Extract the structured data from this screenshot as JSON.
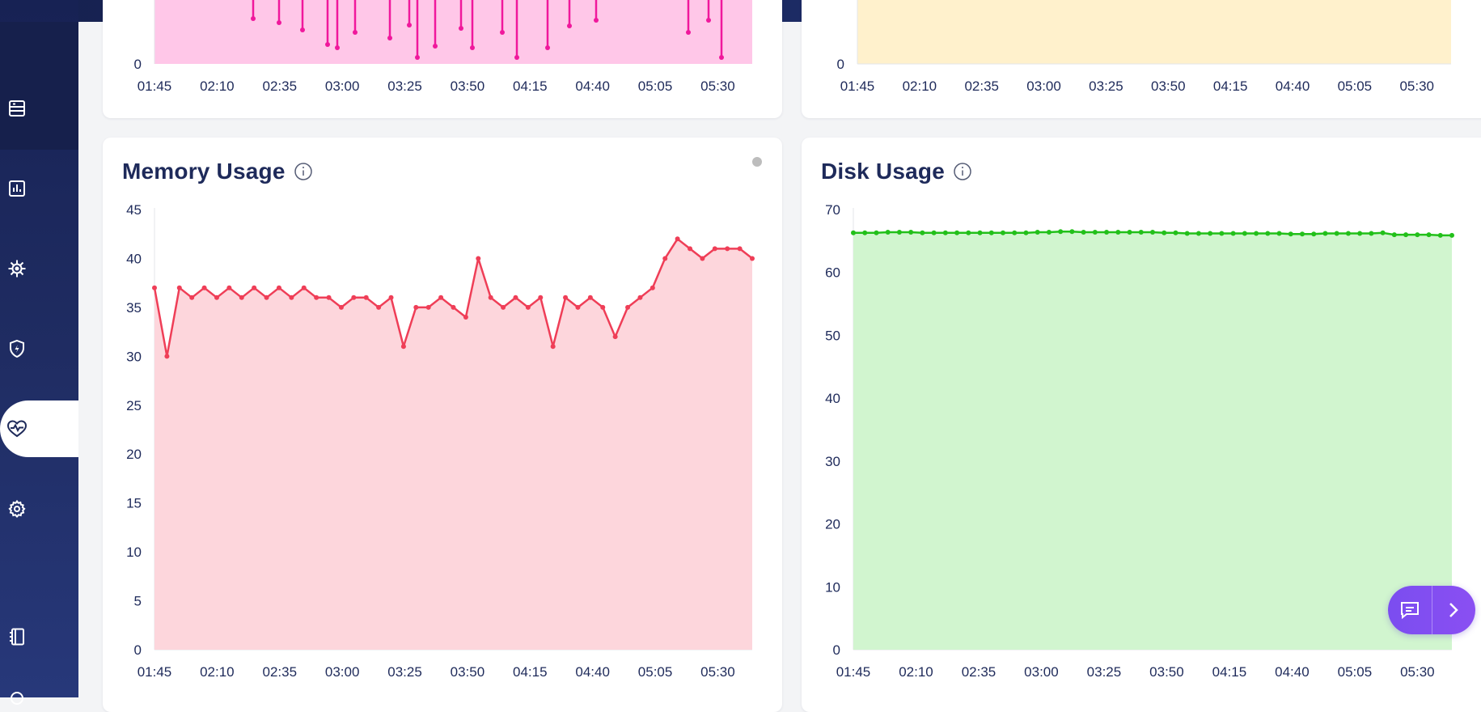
{
  "nav": {
    "items": [
      {
        "icon": "server-icon",
        "name": "nav-item-servers",
        "active": false
      },
      {
        "icon": "bar-chart-icon",
        "name": "nav-item-reports",
        "active": false
      },
      {
        "icon": "virus-icon",
        "name": "nav-item-threats",
        "active": false
      },
      {
        "icon": "shield-bolt-icon",
        "name": "nav-item-protection",
        "active": false
      },
      {
        "icon": "heart-pulse-icon",
        "name": "nav-item-health",
        "active": true
      },
      {
        "icon": "gear-icon",
        "name": "nav-item-settings",
        "active": false
      },
      {
        "icon": "notebook-icon",
        "name": "nav-item-logs",
        "active": false
      }
    ]
  },
  "x_ticks": [
    "01:45",
    "02:10",
    "02:35",
    "03:00",
    "03:25",
    "03:50",
    "04:15",
    "04:40",
    "05:05",
    "05:30"
  ],
  "cards": {
    "memory": {
      "title": "Memory Usage"
    },
    "disk": {
      "title": "Disk Usage"
    }
  },
  "colors": {
    "memory_line": "#ef3e57",
    "memory_fill": "#fdd6dc",
    "disk_line": "#22c01a",
    "disk_fill": "#d1f5cf",
    "top_left_line": "#f0189c",
    "top_left_fill": "#ffc7e8",
    "top_right_fill": "#fff1cc"
  },
  "chart_data": [
    {
      "type": "line",
      "title": "",
      "ylim": [
        0,
        null
      ],
      "y_tick_visible": [
        0
      ],
      "x_ticks": [
        "01:45",
        "02:10",
        "02:35",
        "03:00",
        "03:25",
        "03:50",
        "04:15",
        "04:40",
        "05:05",
        "05:30"
      ],
      "note_visible": "cropped at top; only lower portion visible",
      "series": [
        {
          "values": [
            null,
            null,
            null,
            null,
            null,
            null,
            null,
            null,
            null,
            null,
            null,
            null,
            null,
            null,
            null,
            null,
            null,
            null,
            null,
            null,
            null,
            null,
            null,
            null,
            null,
            null,
            null,
            null,
            null,
            null,
            null,
            null,
            null,
            null,
            null,
            null,
            null,
            null,
            null,
            null,
            null,
            null,
            null,
            null,
            null,
            null,
            null,
            null,
            null
          ]
        }
      ]
    },
    {
      "type": "area",
      "title": "",
      "y_tick_visible": [
        0
      ],
      "x_ticks": [
        "01:45",
        "02:10",
        "02:35",
        "03:00",
        "03:25",
        "03:50",
        "04:15",
        "04:40",
        "05:05",
        "05:30"
      ]
    },
    {
      "type": "line",
      "title": "Memory Usage",
      "ylim": [
        0,
        45
      ],
      "y_ticks": [
        0,
        5,
        10,
        15,
        20,
        25,
        30,
        35,
        40,
        45
      ],
      "x_ticks": [
        "01:45",
        "02:10",
        "02:35",
        "03:00",
        "03:25",
        "03:50",
        "04:15",
        "04:40",
        "05:05",
        "05:30"
      ],
      "series": [
        {
          "values": [
            37,
            30,
            37,
            36,
            37,
            36,
            37,
            36,
            37,
            36,
            37,
            36,
            37,
            36,
            36,
            35,
            36,
            36,
            35,
            36,
            31,
            35,
            35,
            36,
            35,
            34,
            40,
            36,
            35,
            36,
            35,
            36,
            31,
            36,
            35,
            36,
            35,
            32,
            35,
            36,
            37,
            40,
            42,
            41,
            40,
            41,
            41,
            41,
            40
          ]
        }
      ]
    },
    {
      "type": "line",
      "title": "Disk Usage",
      "ylim": [
        0,
        70
      ],
      "y_ticks": [
        0,
        10,
        20,
        30,
        40,
        50,
        60,
        70
      ],
      "x_ticks": [
        "01:45",
        "02:10",
        "02:35",
        "03:00",
        "03:25",
        "03:50",
        "04:15",
        "04:40",
        "05:05",
        "05:30"
      ],
      "series": [
        {
          "values": [
            66.3,
            66.3,
            66.3,
            66.4,
            66.4,
            66.4,
            66.3,
            66.3,
            66.3,
            66.3,
            66.3,
            66.3,
            66.3,
            66.3,
            66.3,
            66.3,
            66.4,
            66.4,
            66.5,
            66.5,
            66.4,
            66.4,
            66.4,
            66.4,
            66.4,
            66.4,
            66.4,
            66.3,
            66.3,
            66.2,
            66.2,
            66.2,
            66.2,
            66.2,
            66.2,
            66.2,
            66.2,
            66.2,
            66.1,
            66.1,
            66.1,
            66.2,
            66.2,
            66.2,
            66.2,
            66.2,
            66.3,
            66.0,
            66.0,
            66.0,
            66.0,
            65.9,
            65.9
          ]
        }
      ]
    }
  ]
}
